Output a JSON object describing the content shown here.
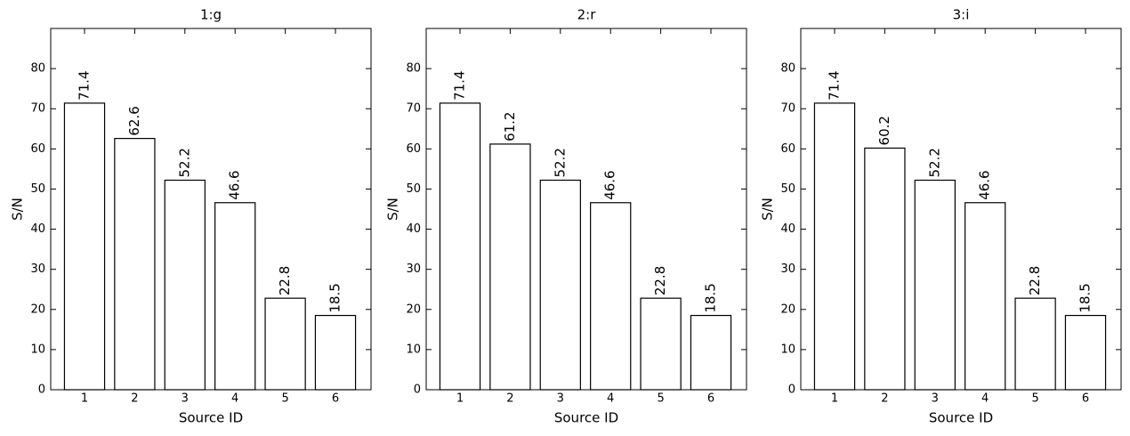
{
  "chart_data": [
    {
      "type": "bar",
      "title": "1:g",
      "x_label": "Source ID",
      "y_label": "S/N",
      "categories": [
        "1",
        "2",
        "3",
        "4",
        "5",
        "6"
      ],
      "values": [
        71.4,
        62.6,
        52.2,
        46.6,
        22.8,
        18.5
      ],
      "color": "#ffffff",
      "edgecolor": "#000000",
      "ylim": [
        0,
        90
      ],
      "yticks": [
        0,
        10,
        20,
        30,
        40,
        50,
        60,
        70,
        80
      ]
    },
    {
      "type": "bar",
      "title": "2:r",
      "x_label": "Source ID",
      "y_label": "S/N",
      "categories": [
        "1",
        "2",
        "3",
        "4",
        "5",
        "6"
      ],
      "values": [
        71.4,
        61.2,
        52.2,
        46.6,
        22.8,
        18.5
      ],
      "color": "#ffffff",
      "edgecolor": "#000000",
      "ylim": [
        0,
        90
      ],
      "yticks": [
        0,
        10,
        20,
        30,
        40,
        50,
        60,
        70,
        80
      ]
    },
    {
      "type": "bar",
      "title": "3:i",
      "x_label": "Source ID",
      "y_label": "S/N",
      "categories": [
        "1",
        "2",
        "3",
        "4",
        "5",
        "6"
      ],
      "values": [
        71.4,
        60.2,
        52.2,
        46.6,
        22.8,
        18.5
      ],
      "color": "#ffffff",
      "edgecolor": "#000000",
      "ylim": [
        0,
        90
      ],
      "yticks": [
        0,
        10,
        20,
        30,
        40,
        50,
        60,
        70,
        80
      ]
    }
  ]
}
